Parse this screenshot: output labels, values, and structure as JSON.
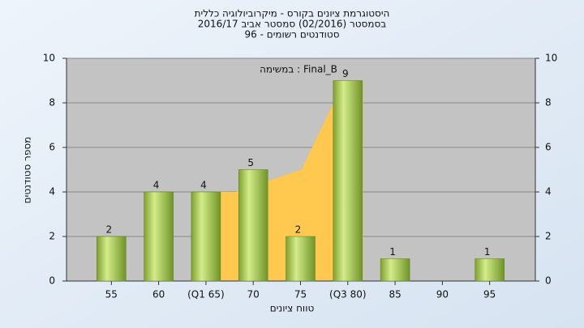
{
  "chart_data": {
    "type": "bar",
    "title": "היסטוגרמת ציונים בקורס - מיקרוביולוגיה כללית",
    "subtitle": "בסמסטר  (02/2016)  סמסטר אביב 2016/17",
    "subtitle2": "סטודנטים רשומים - 96",
    "annotation": "במשימה : Final_B",
    "x_label": "טווח ציונים",
    "y_label": "מספר סטודנטים",
    "categories": [
      "55",
      "60",
      "(Q1 65)",
      "70",
      "75",
      "(Q3 80)",
      "85",
      "90",
      "95"
    ],
    "values": [
      2,
      4,
      4,
      5,
      2,
      9,
      1,
      null,
      1
    ],
    "color": "#9cc24a",
    "area": {
      "x": [
        66.5,
        68.2,
        75.1,
        78.5,
        81.6
      ],
      "values": [
        4,
        4,
        5,
        8,
        9
      ],
      "color": "#ffc84e"
    },
    "ylim": [
      0,
      10
    ],
    "yticks": [
      0,
      2,
      4,
      6,
      8,
      10
    ],
    "y2lim": [
      0,
      10
    ],
    "y2ticks": [
      0,
      2,
      4,
      6,
      8,
      10
    ],
    "grid": true
  }
}
